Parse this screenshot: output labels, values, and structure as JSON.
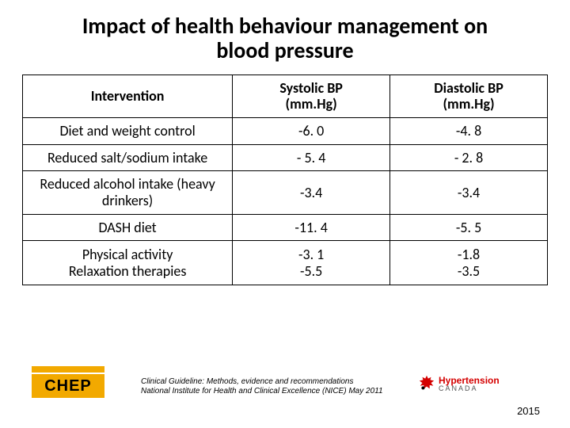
{
  "title": "Impact of health behaviour management on blood pressure",
  "table": {
    "columns": [
      "Intervention",
      "Systolic BP\n(mm.Hg)",
      "Diastolic BP\n(mm.Hg)"
    ],
    "col_widths_pct": [
      40,
      30,
      30
    ],
    "header_fontsize": 18,
    "cell_fontsize": 18,
    "border_color": "#000000",
    "rows": [
      {
        "cells": [
          "Diet and weight control",
          "-6. 0",
          "-4. 8"
        ]
      },
      {
        "cells": [
          "Reduced salt/sodium intake",
          "- 5. 4",
          "- 2. 8"
        ]
      },
      {
        "cells": [
          "Reduced alcohol intake (heavy drinkers)",
          "-3.4",
          "-3.4"
        ]
      },
      {
        "cells": [
          "DASH diet",
          "-11. 4",
          "-5. 5"
        ]
      },
      {
        "cells": [
          "Physical activity\nRelaxation therapies",
          "-3. 1\n-5.5",
          "-1.8\n-3.5"
        ],
        "tall": true
      }
    ]
  },
  "citation": {
    "line1": "Clinical Guideline: Methods, evidence and recommendations",
    "line2": "National Institute for Health and Clinical Excellence (NICE) May 2011"
  },
  "chep": {
    "label": "CHEP",
    "color": "#f2a900"
  },
  "hypertension_canada": {
    "line1": "Hypertension",
    "line2": "CANADA",
    "red": "#d40000"
  },
  "year": "2015",
  "colors": {
    "background": "#ffffff",
    "text": "#000000"
  },
  "fonts": {
    "title_size": 28,
    "body_size": 18,
    "citation_size": 10
  }
}
